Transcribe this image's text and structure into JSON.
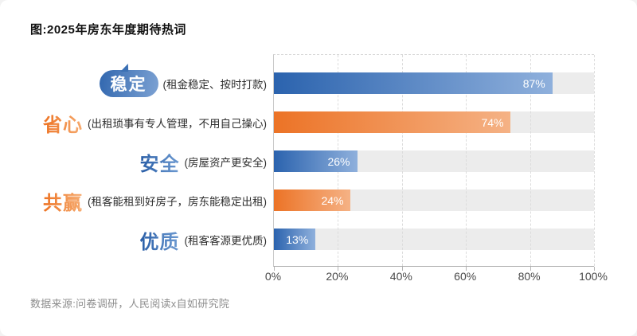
{
  "title": "图:2025年房东年度期待热词",
  "source": "数据来源:问卷调研，人民阅读x自如研究院",
  "colors": {
    "bar_blue_dark": "#2b63ae",
    "bar_blue_light": "#8fb0dc",
    "bar_orange_dark": "#ec7326",
    "bar_orange_light": "#f5b285",
    "track_gray": "#ececec",
    "keyword_blue": "#2f6cb4",
    "keyword_orange": "#ee7f33",
    "bubble_blue": "#3167af"
  },
  "chart_data": {
    "type": "bar",
    "orientation": "horizontal",
    "title": "图:2025年房东年度期待热词",
    "xlabel": "",
    "ylabel": "",
    "xlim": [
      0,
      100
    ],
    "xticks": [
      "0%",
      "20%",
      "40%",
      "60%",
      "80%",
      "100%"
    ],
    "grid": "vertical-dashed",
    "legend": "none",
    "source": "数据来源:问卷调研，人民阅读x自如研究院",
    "rows": [
      {
        "keyword": "稳定",
        "description": "(租金稳定、按时打款)",
        "value": 87,
        "value_label": "87%",
        "color": "blue",
        "bubble": true
      },
      {
        "keyword": "省心",
        "description": "(出租琐事有专人管理，不用自己操心)",
        "value": 74,
        "value_label": "74%",
        "color": "orange",
        "bubble": false
      },
      {
        "keyword": "安全",
        "description": "(房屋资产更安全)",
        "value": 26,
        "value_label": "26%",
        "color": "blue",
        "bubble": false
      },
      {
        "keyword": "共赢",
        "description": "(租客能租到好房子，房东能稳定出租)",
        "value": 24,
        "value_label": "24%",
        "color": "orange",
        "bubble": false
      },
      {
        "keyword": "优质",
        "description": "(租客客源更优质)",
        "value": 13,
        "value_label": "13%",
        "color": "blue",
        "bubble": false
      }
    ]
  }
}
